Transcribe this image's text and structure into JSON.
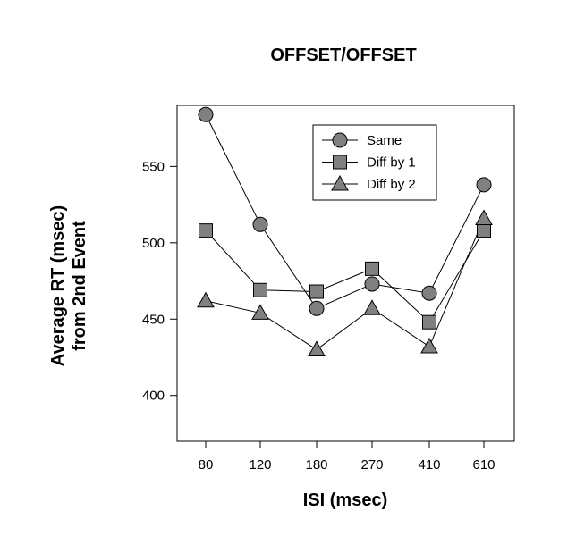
{
  "chart_data": {
    "type": "line",
    "title": "OFFSET/OFFSET",
    "xlabel": "ISI (msec)",
    "ylabel_lines": [
      "Average RT (msec)",
      "from 2nd Event"
    ],
    "categories": [
      "80",
      "120",
      "180",
      "270",
      "410",
      "610"
    ],
    "ylim": [
      370,
      590
    ],
    "yticks": [
      400,
      450,
      500,
      550
    ],
    "grid": false,
    "legend_position": "top-right",
    "series": [
      {
        "name": "Same",
        "marker": "circle",
        "values": [
          584,
          512,
          457,
          473,
          467,
          538
        ]
      },
      {
        "name": "Diff by 1",
        "marker": "square",
        "values": [
          508,
          469,
          468,
          483,
          448,
          508
        ]
      },
      {
        "name": "Diff by 2",
        "marker": "triangle",
        "values": [
          462,
          454,
          430,
          457,
          432,
          516
        ]
      }
    ],
    "colors": {
      "marker_fill": "#808080",
      "line": "#000000"
    }
  }
}
